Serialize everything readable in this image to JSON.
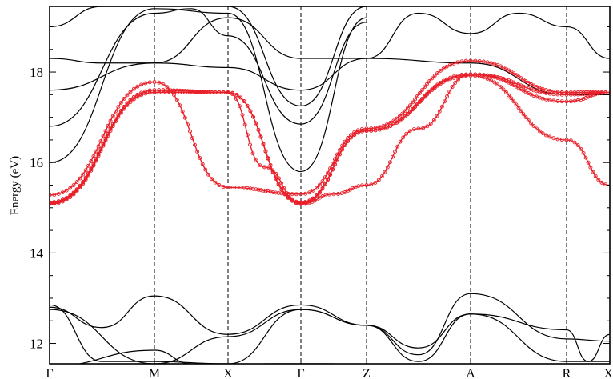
{
  "chart_data": {
    "type": "line",
    "title": "",
    "xlabel": "",
    "ylabel": "Energy (eV)",
    "ylim": [
      11.55,
      19.45
    ],
    "x_ticks": [
      {
        "label": "Γ",
        "pos": 0
      },
      {
        "label": "M",
        "pos": 1
      },
      {
        "label": "X",
        "pos": 2
      },
      {
        "label": "Γ",
        "pos": 3
      },
      {
        "label": "Z",
        "pos": 4
      },
      {
        "label": "A",
        "pos": 5
      },
      {
        "label": "R",
        "pos": 6
      },
      {
        "label": "X",
        "pos": 7
      }
    ],
    "y_ticks": [
      12,
      14,
      16,
      18
    ],
    "colors": {
      "highlight": "#e8202a",
      "band": "#000000"
    },
    "highlighted_series": [
      {
        "x": [
          0,
          1,
          2,
          2.5,
          3,
          3.5,
          4,
          4.5,
          5,
          6,
          7
        ],
        "y": [
          15.08,
          17.55,
          17.55,
          15.9,
          15.08,
          15.3,
          15.5,
          16.75,
          17.95,
          17.5,
          17.55
        ]
      },
      {
        "x": [
          0,
          1,
          2,
          3,
          4,
          5,
          6,
          7
        ],
        "y": [
          15.28,
          17.78,
          15.45,
          15.3,
          16.75,
          18.25,
          17.55,
          17.55
        ]
      },
      {
        "x": [
          0,
          1,
          2,
          3,
          4,
          5,
          6,
          7
        ],
        "y": [
          15.1,
          17.6,
          17.55,
          15.1,
          16.7,
          17.92,
          16.5,
          15.5
        ]
      },
      {
        "x": [
          0,
          1,
          2,
          3,
          4,
          5,
          6,
          7
        ],
        "y": [
          15.12,
          17.6,
          17.55,
          15.12,
          16.7,
          17.95,
          17.35,
          17.55
        ]
      }
    ],
    "other_series": [
      {
        "x": [
          0,
          0.5,
          1,
          2,
          3,
          4,
          5,
          6,
          7
        ],
        "y": [
          18.3,
          18.2,
          18.2,
          18.1,
          17.6,
          18.3,
          18.2,
          17.5,
          17.5
        ]
      },
      {
        "x": [
          0,
          1,
          2,
          3,
          4,
          4.5,
          5,
          5.5,
          6,
          7
        ],
        "y": [
          17.6,
          18.2,
          19.2,
          18.3,
          18.3,
          19.3,
          18.85,
          19.3,
          19.0,
          18.3
        ]
      },
      {
        "x": [
          0,
          1,
          1.5,
          2,
          3,
          4
        ],
        "y": [
          16.8,
          19.3,
          19.4,
          18.8,
          16.85,
          19.1
        ]
      },
      {
        "x": [
          0,
          1,
          2,
          3,
          4
        ],
        "y": [
          16.0,
          19.4,
          19.3,
          15.8,
          19.2
        ]
      },
      {
        "x": [
          0,
          0.5,
          1
        ],
        "y": [
          19.0,
          19.45,
          19.45
        ]
      },
      {
        "x": [
          2,
          3,
          4
        ],
        "y": [
          19.45,
          17.25,
          19.45
        ]
      },
      {
        "x": [
          0,
          0.5,
          1,
          2,
          3,
          4,
          4.5,
          5,
          6,
          7
        ],
        "y": [
          12.8,
          12.35,
          13.05,
          12.2,
          12.85,
          12.4,
          11.75,
          13.1,
          12.1,
          12.05
        ]
      },
      {
        "x": [
          0,
          0.5,
          1,
          2,
          3,
          4,
          4.5,
          5,
          6,
          7
        ],
        "y": [
          12.85,
          11.6,
          11.6,
          11.55,
          12.75,
          12.4,
          11.9,
          12.65,
          11.6,
          11.6
        ]
      },
      {
        "x": [
          0,
          1,
          2,
          3,
          4,
          4.5,
          5,
          6,
          6.5,
          7
        ],
        "y": [
          12.75,
          11.55,
          12.15,
          12.75,
          12.4,
          11.6,
          12.65,
          12.3,
          11.6,
          12.2
        ]
      },
      {
        "x": [
          0,
          1,
          1.5
        ],
        "y": [
          11.5,
          11.85,
          11.55
        ]
      },
      {
        "x": [
          2.5,
          3,
          3.5
        ],
        "y": [
          11.55,
          11.55,
          11.55
        ]
      }
    ]
  }
}
